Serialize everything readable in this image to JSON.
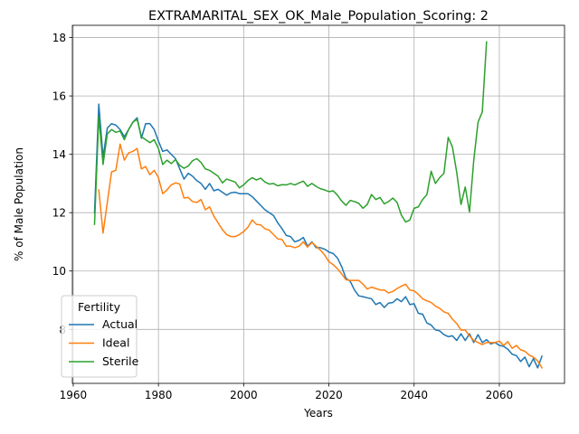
{
  "chart_data": {
    "type": "line",
    "title": "EXTRAMARITAL_SEX_OK_Male_Population_Scoring: 2",
    "xlabel": "Years",
    "ylabel": "% of Male Population",
    "xlim": [
      1959.8,
      2075.3
    ],
    "ylim": [
      6.15,
      18.42
    ],
    "xticks": [
      1960,
      1980,
      2000,
      2020,
      2040,
      2060
    ],
    "yticks": [
      8,
      10,
      12,
      14,
      16,
      18
    ],
    "grid": true,
    "legend": {
      "title": "Fertility",
      "placement": "lower-left"
    },
    "series": [
      {
        "name": "Actual",
        "color": "#1f77b4",
        "x": [
          1965,
          1966,
          1967,
          1968,
          1969,
          1970,
          1971,
          1972,
          1973,
          1974,
          1975,
          1976,
          1977,
          1978,
          1979,
          1980,
          1981,
          1982,
          1983,
          1984,
          1985,
          1986,
          1987,
          1988,
          1989,
          1990,
          1991,
          1992,
          1993,
          1994,
          1995,
          1996,
          1997,
          1998,
          1999,
          2000,
          2001,
          2002,
          2003,
          2004,
          2005,
          2006,
          2007,
          2008,
          2009,
          2010,
          2011,
          2012,
          2013,
          2014,
          2015,
          2016,
          2017,
          2018,
          2019,
          2020,
          2021,
          2022,
          2023,
          2024,
          2025,
          2026,
          2027,
          2028,
          2029,
          2030,
          2031,
          2032,
          2033,
          2034,
          2035,
          2036,
          2037,
          2038,
          2039,
          2040,
          2041,
          2042,
          2043,
          2044,
          2045,
          2046,
          2047,
          2048,
          2049,
          2050,
          2051,
          2052,
          2053,
          2054,
          2055,
          2056,
          2057,
          2058,
          2059,
          2060,
          2061,
          2062,
          2063,
          2064,
          2065,
          2066,
          2067,
          2068,
          2069,
          2070
        ],
        "values": [
          12.0,
          15.72,
          13.9,
          14.9,
          15.05,
          15.0,
          14.85,
          14.6,
          14.85,
          15.1,
          15.25,
          14.55,
          15.05,
          15.05,
          14.85,
          14.45,
          14.1,
          14.15,
          14.0,
          13.85,
          13.5,
          13.15,
          13.35,
          13.25,
          13.1,
          13.0,
          12.8,
          13.0,
          12.75,
          12.8,
          12.7,
          12.6,
          12.68,
          12.7,
          12.65,
          12.65,
          12.65,
          12.55,
          12.4,
          12.25,
          12.1,
          12.0,
          11.9,
          11.65,
          11.45,
          11.22,
          11.18,
          11.0,
          11.05,
          11.15,
          10.85,
          11.0,
          10.8,
          10.8,
          10.75,
          10.65,
          10.6,
          10.45,
          10.15,
          9.75,
          9.65,
          9.35,
          9.15,
          9.12,
          9.08,
          9.05,
          8.85,
          8.92,
          8.75,
          8.9,
          8.92,
          9.05,
          8.95,
          9.12,
          8.85,
          8.88,
          8.55,
          8.52,
          8.22,
          8.15,
          7.98,
          7.95,
          7.82,
          7.75,
          7.78,
          7.62,
          7.85,
          7.62,
          7.85,
          7.55,
          7.82,
          7.55,
          7.65,
          7.5,
          7.55,
          7.45,
          7.42,
          7.32,
          7.15,
          7.1,
          6.9,
          7.05,
          6.72,
          7.0,
          6.68,
          7.08
        ]
      },
      {
        "name": "Ideal",
        "color": "#ff7f0e",
        "x": [
          1966,
          1967,
          1968,
          1969,
          1970,
          1971,
          1972,
          1973,
          1974,
          1975,
          1976,
          1977,
          1978,
          1979,
          1980,
          1981,
          1982,
          1983,
          1984,
          1985,
          1986,
          1987,
          1988,
          1989,
          1990,
          1991,
          1992,
          1993,
          1994,
          1995,
          1996,
          1997,
          1998,
          1999,
          2000,
          2001,
          2002,
          2003,
          2004,
          2005,
          2006,
          2007,
          2008,
          2009,
          2010,
          2011,
          2012,
          2013,
          2014,
          2015,
          2016,
          2017,
          2018,
          2019,
          2020,
          2021,
          2022,
          2023,
          2024,
          2025,
          2026,
          2027,
          2028,
          2029,
          2030,
          2031,
          2032,
          2033,
          2034,
          2035,
          2036,
          2037,
          2038,
          2039,
          2040,
          2041,
          2042,
          2043,
          2044,
          2045,
          2046,
          2047,
          2048,
          2049,
          2050,
          2051,
          2052,
          2053,
          2054,
          2055,
          2056,
          2057,
          2058,
          2059,
          2060,
          2061,
          2062,
          2063,
          2064,
          2065,
          2066,
          2067,
          2068,
          2069,
          2070
        ],
        "values": [
          12.78,
          11.3,
          12.35,
          13.4,
          13.45,
          14.35,
          13.8,
          14.05,
          14.1,
          14.2,
          13.5,
          13.58,
          13.3,
          13.45,
          13.2,
          12.65,
          12.78,
          12.95,
          13.02,
          12.98,
          12.5,
          12.52,
          12.38,
          12.35,
          12.45,
          12.1,
          12.2,
          11.88,
          11.65,
          11.42,
          11.25,
          11.18,
          11.18,
          11.25,
          11.35,
          11.5,
          11.75,
          11.6,
          11.58,
          11.45,
          11.4,
          11.25,
          11.1,
          11.08,
          10.85,
          10.85,
          10.8,
          10.85,
          11.0,
          10.82,
          10.98,
          10.85,
          10.72,
          10.55,
          10.32,
          10.22,
          10.08,
          9.9,
          9.7,
          9.68,
          9.68,
          9.68,
          9.55,
          9.38,
          9.45,
          9.4,
          9.35,
          9.35,
          9.25,
          9.3,
          9.4,
          9.48,
          9.55,
          9.35,
          9.32,
          9.2,
          9.05,
          8.98,
          8.92,
          8.8,
          8.72,
          8.6,
          8.55,
          8.35,
          8.2,
          7.98,
          7.98,
          7.78,
          7.62,
          7.55,
          7.48,
          7.55,
          7.55,
          7.55,
          7.6,
          7.45,
          7.58,
          7.35,
          7.45,
          7.3,
          7.25,
          7.12,
          7.05,
          6.92,
          6.68
        ]
      },
      {
        "name": "Sterile",
        "color": "#2ca02c",
        "x": [
          1965,
          1966,
          1967,
          1968,
          1969,
          1970,
          1971,
          1972,
          1973,
          1974,
          1975,
          1976,
          1977,
          1978,
          1979,
          1980,
          1981,
          1982,
          1983,
          1984,
          1985,
          1986,
          1987,
          1988,
          1989,
          1990,
          1991,
          1992,
          1993,
          1994,
          1995,
          1996,
          1997,
          1998,
          1999,
          2000,
          2001,
          2002,
          2003,
          2004,
          2005,
          2006,
          2007,
          2008,
          2009,
          2010,
          2011,
          2012,
          2013,
          2014,
          2015,
          2016,
          2017,
          2018,
          2019,
          2020,
          2021,
          2022,
          2023,
          2024,
          2025,
          2026,
          2027,
          2028,
          2029,
          2030,
          2031,
          2032,
          2033,
          2034,
          2035,
          2036,
          2037,
          2038,
          2039,
          2040,
          2041,
          2042,
          2043,
          2044,
          2045,
          2046,
          2047,
          2048,
          2049,
          2050,
          2051,
          2052,
          2053,
          2054,
          2055,
          2056,
          2057
        ],
        "values": [
          11.6,
          15.3,
          13.65,
          14.7,
          14.85,
          14.75,
          14.8,
          14.5,
          14.85,
          15.1,
          15.2,
          14.6,
          14.5,
          14.4,
          14.5,
          14.2,
          13.65,
          13.8,
          13.68,
          13.82,
          13.62,
          13.52,
          13.6,
          13.78,
          13.85,
          13.72,
          13.5,
          13.45,
          13.35,
          13.25,
          13.02,
          13.15,
          13.1,
          13.05,
          12.85,
          12.95,
          13.1,
          13.2,
          13.12,
          13.18,
          13.05,
          12.98,
          13.0,
          12.92,
          12.96,
          12.95,
          13.0,
          12.95,
          13.02,
          13.08,
          12.9,
          13.0,
          12.9,
          12.82,
          12.78,
          12.72,
          12.75,
          12.6,
          12.4,
          12.25,
          12.42,
          12.38,
          12.32,
          12.15,
          12.28,
          12.62,
          12.45,
          12.52,
          12.3,
          12.38,
          12.5,
          12.35,
          11.92,
          11.68,
          11.75,
          12.15,
          12.2,
          12.45,
          12.62,
          13.42,
          13.0,
          13.2,
          13.35,
          14.58,
          14.25,
          13.38,
          12.28,
          12.88,
          12.02,
          13.8,
          15.1,
          15.45,
          17.85
        ]
      }
    ]
  }
}
